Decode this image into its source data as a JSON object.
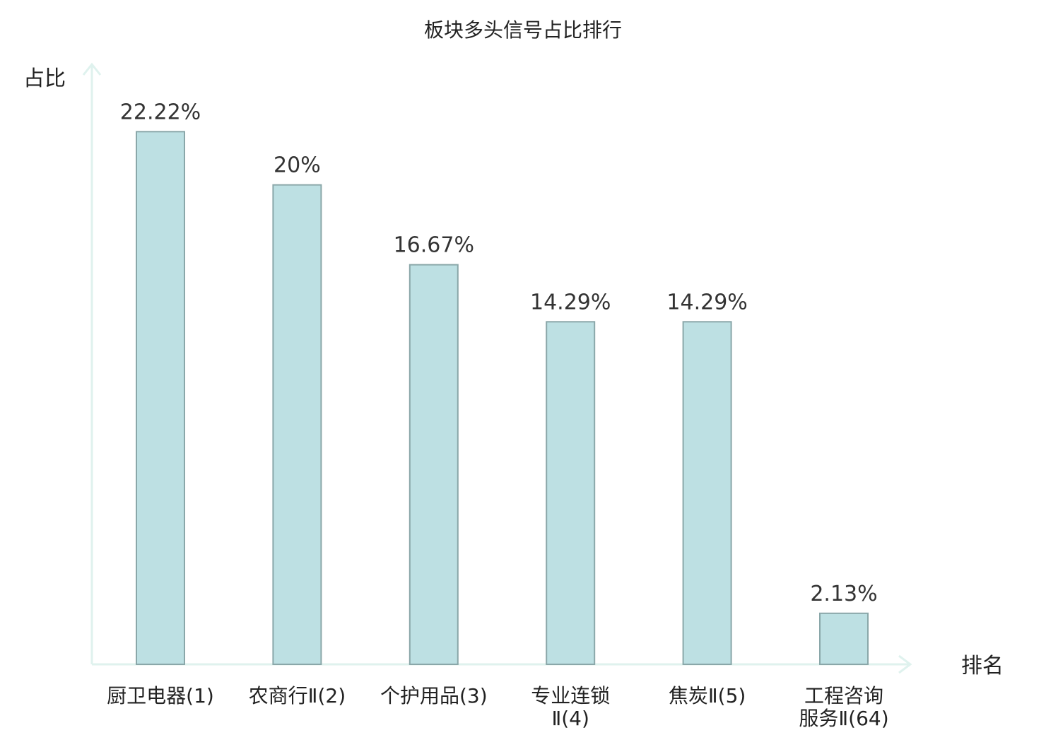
{
  "chart_data": {
    "type": "bar",
    "title": "板块多头信号占比排行",
    "xlabel": "排名",
    "ylabel": "占比",
    "categories": [
      [
        "厨卫电器(1)"
      ],
      [
        "农商行Ⅱ(2)"
      ],
      [
        "个护用品(3)"
      ],
      [
        "专业连锁",
        "Ⅱ(4)"
      ],
      [
        "焦炭Ⅱ(5)"
      ],
      [
        "工程咨询",
        "服务Ⅱ(64)"
      ]
    ],
    "values": [
      22.22,
      20,
      16.67,
      14.29,
      14.29,
      2.13
    ],
    "value_labels": [
      "22.22%",
      "20%",
      "16.67%",
      "14.29%",
      "14.29%",
      "2.13%"
    ],
    "highlight_index": 5,
    "ylim": [
      0,
      25
    ],
    "grid": false,
    "colors": {
      "bar_fill": "#bde0e3",
      "bar_stroke": "#8aa7a9",
      "axis": "#dff2ee",
      "highlight_label": "#e0000f",
      "text": "#222222",
      "value_text": "#333333"
    }
  }
}
